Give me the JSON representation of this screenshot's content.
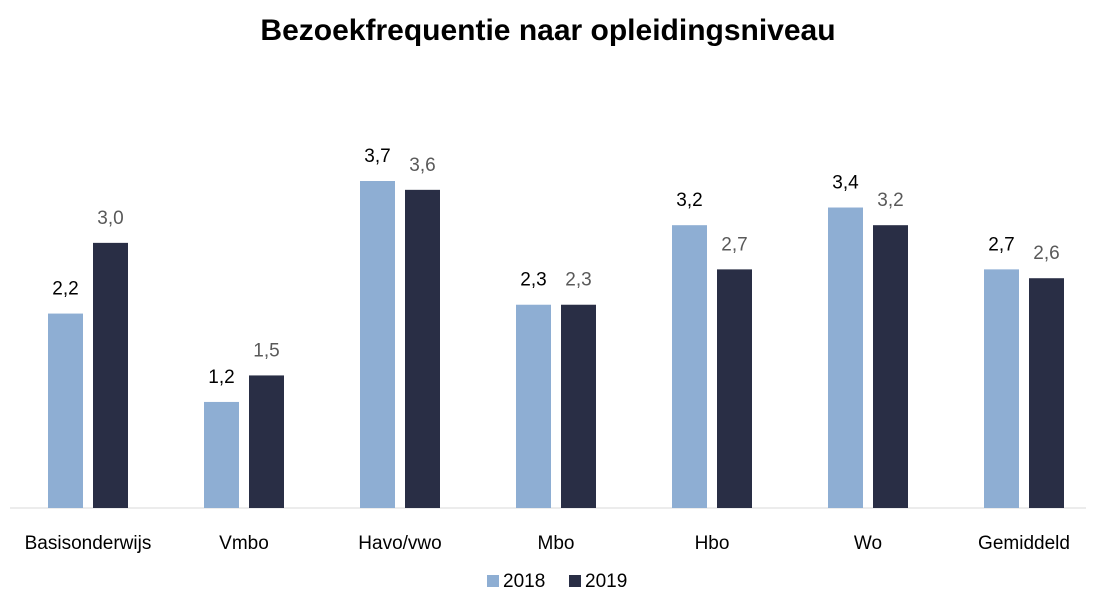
{
  "chart_data": {
    "type": "bar",
    "title": "Bezoekfrequentie naar opleidingsniveau",
    "categories": [
      "Basisonderwijs",
      "Vmbo",
      "Havo/vwo",
      "Mbo",
      "Hbo",
      "Wo",
      "Gemiddeld"
    ],
    "series": [
      {
        "name": "2018",
        "color": "#8eaed3",
        "values": [
          2.2,
          1.2,
          3.7,
          2.3,
          3.2,
          3.4,
          2.7
        ],
        "value_labels": [
          "2,2",
          "1,2",
          "3,7",
          "2,3",
          "3,2",
          "3,4",
          "2,7"
        ]
      },
      {
        "name": "2019",
        "color": "#292e45",
        "values": [
          3.0,
          1.5,
          3.6,
          2.3,
          2.7,
          3.2,
          2.6
        ],
        "value_labels": [
          "3,0",
          "1,5",
          "3,6",
          "2,3",
          "2,7",
          "3,2",
          "2,6"
        ]
      }
    ],
    "legend": "bottom"
  }
}
